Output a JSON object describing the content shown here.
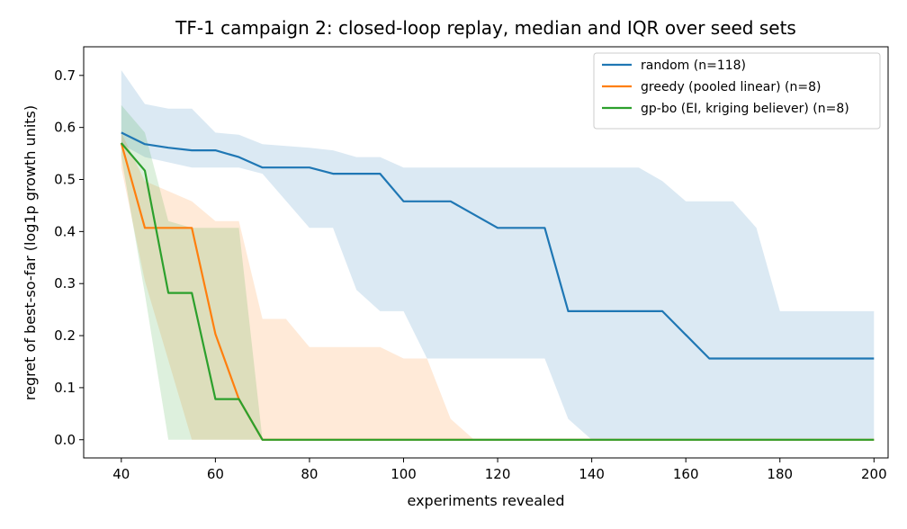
{
  "chart_data": {
    "type": "line",
    "title": "TF-1 campaign 2: closed-loop replay, median and IQR over seed sets",
    "xlabel": "experiments revealed",
    "ylabel": "regret of best-so-far (log1p growth units)",
    "xlim": [
      32,
      203
    ],
    "ylim": [
      -0.035,
      0.755
    ],
    "xticks": [
      40,
      60,
      80,
      100,
      120,
      140,
      160,
      180,
      200
    ],
    "yticks": [
      0.0,
      0.1,
      0.2,
      0.3,
      0.4,
      0.5,
      0.6,
      0.7
    ],
    "grid": false,
    "legend_position": "top-right",
    "series": [
      {
        "name": "random (n=118)",
        "color": "#1f77b4",
        "median": [
          [
            40,
            0.59
          ],
          [
            45,
            0.568
          ],
          [
            50,
            0.561
          ],
          [
            55,
            0.556
          ],
          [
            60,
            0.556
          ],
          [
            65,
            0.543
          ],
          [
            70,
            0.523
          ],
          [
            80,
            0.523
          ],
          [
            85,
            0.511
          ],
          [
            95,
            0.511
          ],
          [
            100,
            0.458
          ],
          [
            110,
            0.458
          ],
          [
            120,
            0.407
          ],
          [
            130,
            0.407
          ],
          [
            135,
            0.247
          ],
          [
            155,
            0.247
          ],
          [
            165,
            0.156
          ],
          [
            200,
            0.156
          ]
        ],
        "iqr_high": [
          [
            40,
            0.71
          ],
          [
            45,
            0.645
          ],
          [
            50,
            0.636
          ],
          [
            55,
            0.636
          ],
          [
            60,
            0.59
          ],
          [
            65,
            0.586
          ],
          [
            70,
            0.568
          ],
          [
            80,
            0.561
          ],
          [
            85,
            0.556
          ],
          [
            90,
            0.543
          ],
          [
            95,
            0.543
          ],
          [
            100,
            0.523
          ],
          [
            150,
            0.523
          ],
          [
            155,
            0.497
          ],
          [
            160,
            0.458
          ],
          [
            170,
            0.458
          ],
          [
            175,
            0.407
          ],
          [
            180,
            0.247
          ],
          [
            200,
            0.247
          ]
        ],
        "iqr_low": [
          [
            40,
            0.568
          ],
          [
            45,
            0.543
          ],
          [
            55,
            0.523
          ],
          [
            65,
            0.523
          ],
          [
            70,
            0.511
          ],
          [
            80,
            0.407
          ],
          [
            85,
            0.407
          ],
          [
            90,
            0.288
          ],
          [
            95,
            0.247
          ],
          [
            100,
            0.247
          ],
          [
            105,
            0.156
          ],
          [
            130,
            0.156
          ],
          [
            135,
            0.04
          ],
          [
            140,
            0.0
          ],
          [
            200,
            0.0
          ]
        ]
      },
      {
        "name": "greedy (pooled linear) (n=8)",
        "color": "#ff7f0e",
        "median": [
          [
            40,
            0.57
          ],
          [
            45,
            0.407
          ],
          [
            55,
            0.407
          ],
          [
            60,
            0.203
          ],
          [
            65,
            0.078
          ],
          [
            70,
            0.0
          ],
          [
            200,
            0.0
          ]
        ],
        "iqr_high": [
          [
            40,
            0.59
          ],
          [
            45,
            0.497
          ],
          [
            55,
            0.458
          ],
          [
            60,
            0.42
          ],
          [
            65,
            0.42
          ],
          [
            70,
            0.232
          ],
          [
            75,
            0.232
          ],
          [
            80,
            0.178
          ],
          [
            95,
            0.178
          ],
          [
            100,
            0.156
          ],
          [
            105,
            0.156
          ],
          [
            110,
            0.04
          ],
          [
            115,
            0.0
          ]
        ],
        "iqr_low": [
          [
            40,
            0.523
          ],
          [
            45,
            0.305
          ],
          [
            55,
            0.0
          ],
          [
            115,
            0.0
          ]
        ]
      },
      {
        "name": "gp-bo (EI, kriging believer) (n=8)",
        "color": "#2ca02c",
        "median": [
          [
            40,
            0.57
          ],
          [
            45,
            0.517
          ],
          [
            50,
            0.282
          ],
          [
            55,
            0.282
          ],
          [
            60,
            0.078
          ],
          [
            65,
            0.078
          ],
          [
            70,
            0.0
          ],
          [
            200,
            0.0
          ]
        ],
        "iqr_high": [
          [
            40,
            0.643
          ],
          [
            45,
            0.59
          ],
          [
            50,
            0.42
          ],
          [
            55,
            0.407
          ],
          [
            60,
            0.407
          ],
          [
            65,
            0.407
          ],
          [
            70,
            0.0
          ]
        ],
        "iqr_low": [
          [
            40,
            0.545
          ],
          [
            45,
            0.28
          ],
          [
            50,
            0.0
          ],
          [
            70,
            0.0
          ]
        ]
      }
    ]
  }
}
